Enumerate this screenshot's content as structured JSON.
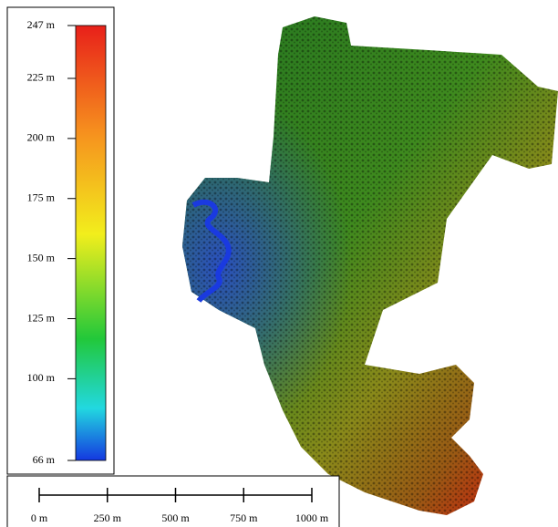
{
  "legend": {
    "min": 66,
    "max": 247,
    "ticks": [
      {
        "value": 247,
        "label": "247 m"
      },
      {
        "value": 225,
        "label": "225 m"
      },
      {
        "value": 200,
        "label": "200 m"
      },
      {
        "value": 175,
        "label": "175 m"
      },
      {
        "value": 150,
        "label": "150 m"
      },
      {
        "value": 125,
        "label": "125 m"
      },
      {
        "value": 100,
        "label": "100 m"
      },
      {
        "value": 66,
        "label": "66 m"
      }
    ]
  },
  "scale_bar": {
    "min": 0,
    "max": 1000,
    "ticks": [
      {
        "value": 0,
        "label": "0 m"
      },
      {
        "value": 250,
        "label": "250 m"
      },
      {
        "value": 500,
        "label": "500 m"
      },
      {
        "value": 750,
        "label": "750 m"
      },
      {
        "value": 1000,
        "label": "1000 m"
      }
    ]
  }
}
